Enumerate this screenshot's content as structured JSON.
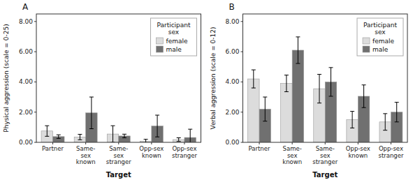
{
  "chart_data": [
    {
      "type": "bar",
      "title": "A",
      "x_label": "Target",
      "y_label": "Physical aggression (scale = 0-25)",
      "categories": [
        "Partner",
        "Same-\nsex\nknown",
        "Same-\nsex\nstranger",
        "Opp-sex\nknown",
        "Opp-sex\nstranger"
      ],
      "series": [
        {
          "name": "female",
          "color": "#dcdcdc",
          "values": [
            0.75,
            0.35,
            0.55,
            0.08,
            0.18
          ],
          "errors": [
            0.35,
            0.18,
            0.55,
            0.12,
            0.12
          ]
        },
        {
          "name": "male",
          "color": "#707070",
          "values": [
            0.38,
            1.95,
            0.42,
            1.08,
            0.32
          ],
          "errors": [
            0.12,
            1.05,
            0.12,
            0.72,
            0.55
          ]
        }
      ],
      "ylim": [
        0,
        8.5
      ],
      "yticks": [
        {
          "value": 0.0,
          "label": "0.00"
        },
        {
          "value": 2.0,
          "label": "2.00"
        },
        {
          "value": 4.0,
          "label": "4.00"
        },
        {
          "value": 6.0,
          "label": "6.00"
        },
        {
          "value": 8.0,
          "label": "8.00"
        }
      ],
      "legend": "upper right",
      "legend_title": "Participant\nsex",
      "grid": false
    },
    {
      "type": "bar",
      "title": "B",
      "x_label": "Target",
      "y_label": "Verbal aggression (scale = 0-12)",
      "categories": [
        "Partner",
        "Same-\nsex\nknown",
        "Same-\nsex\nstranger",
        "Opp-sex\nknown",
        "Opp-sex\nstranger"
      ],
      "series": [
        {
          "name": "female",
          "color": "#dcdcdc",
          "values": [
            4.2,
            3.9,
            3.55,
            1.5,
            1.35
          ],
          "errors": [
            0.6,
            0.55,
            0.95,
            0.55,
            0.55
          ]
        },
        {
          "name": "male",
          "color": "#707070",
          "values": [
            2.2,
            6.1,
            4.0,
            3.05,
            2.0
          ],
          "errors": [
            0.8,
            0.88,
            0.95,
            0.75,
            0.65
          ]
        }
      ],
      "ylim": [
        0,
        8.5
      ],
      "yticks": [
        {
          "value": 0.0,
          "label": "0.00"
        },
        {
          "value": 2.0,
          "label": "2.00"
        },
        {
          "value": 4.0,
          "label": "4.00"
        },
        {
          "value": 6.0,
          "label": "6.00"
        },
        {
          "value": 8.0,
          "label": "8.00"
        }
      ],
      "legend": "upper right",
      "legend_title": "Participant\nsex",
      "grid": false
    }
  ]
}
